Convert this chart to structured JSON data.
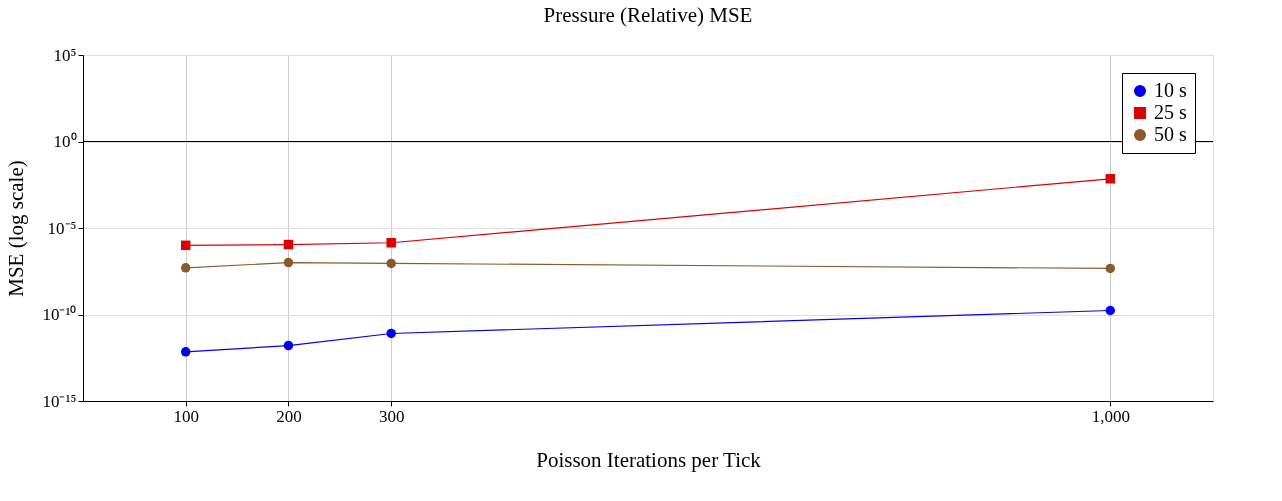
{
  "chart_data": {
    "type": "line",
    "title": "Pressure (Relative) MSE",
    "xlabel": "Poisson Iterations per Tick",
    "ylabel": "MSE (log scale)",
    "x": [
      100,
      200,
      300,
      1000
    ],
    "series": [
      {
        "name": "10 s",
        "color": "#0000ee",
        "marker": "circle",
        "values": [
          7e-13,
          1.6e-12,
          8e-12,
          1.7e-10
        ]
      },
      {
        "name": "25 s",
        "color": "#dd0000",
        "marker": "square",
        "values": [
          1e-06,
          1.1e-06,
          1.4e-06,
          0.007
        ]
      },
      {
        "name": "50 s",
        "color": "#8b5a2b",
        "marker": "circle",
        "values": [
          5e-08,
          1e-07,
          9e-08,
          4.6e-08
        ]
      }
    ],
    "log": "y",
    "xlim": [
      0,
      1100
    ],
    "ylim": [
      1e-15,
      100000.0
    ],
    "xticks": [
      100,
      200,
      300,
      {
        "value": 1000,
        "label": "1,000"
      }
    ],
    "yticks": [
      {
        "value": 1e-15,
        "label": "10⁻¹⁵"
      },
      {
        "value": 1e-10,
        "label": "10⁻¹⁰"
      },
      {
        "value": 1e-05,
        "label": "10⁻⁵"
      },
      {
        "value": 1,
        "label": "10⁰"
      },
      {
        "value": 100000.0,
        "label": "10⁵"
      }
    ],
    "ref_lines": [
      {
        "axis": "y",
        "value": 1,
        "color": "#000000"
      }
    ],
    "grid": true,
    "legend": "top right",
    "line_style": "solid"
  }
}
